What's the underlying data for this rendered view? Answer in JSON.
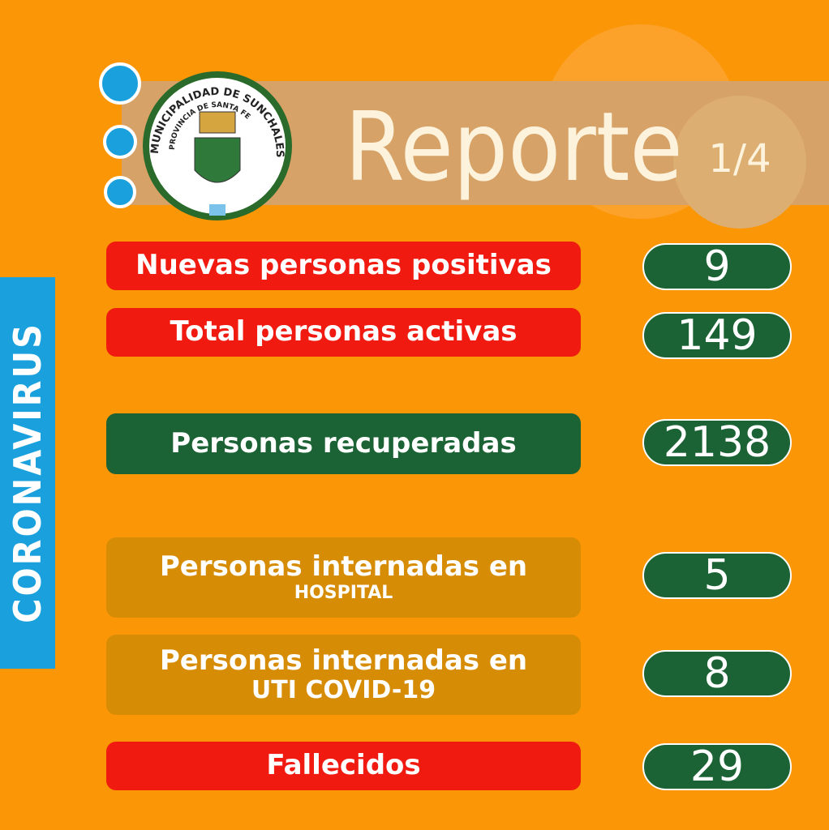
{
  "header": {
    "title": "Reporte",
    "page": "1/4",
    "logo_top": "MUNICIPALIDAD DE SUNCHALES",
    "logo_inner": "PROVINCIA DE SANTA FE"
  },
  "side_label": "CORONAVIRUS",
  "rows": [
    {
      "label": "Nuevas personas positivas",
      "value": 9
    },
    {
      "label": "Total personas activas",
      "value": 149
    },
    {
      "label": "Personas recuperadas",
      "value": 2138
    },
    {
      "label": "Personas internadas en",
      "sublabel": "HOSPITAL",
      "value": 5
    },
    {
      "label": "Personas internadas en",
      "sublabel": "UTI COVID-19",
      "value": 8
    },
    {
      "label": "Fallecidos",
      "value": 29
    }
  ]
}
